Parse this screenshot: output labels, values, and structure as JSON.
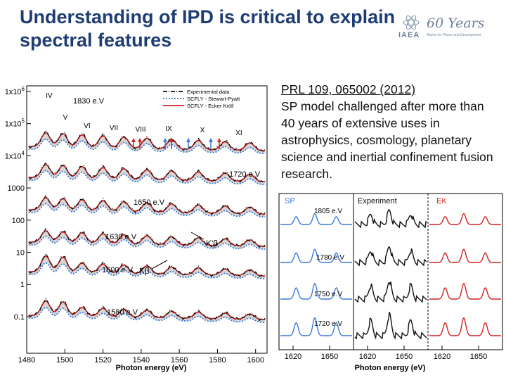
{
  "slide": {
    "title_line1": "Understanding of IPD is critical to explain",
    "title_line2": "spectral features",
    "logo": {
      "years_text": "60 Years",
      "org": "IAEA",
      "tagline": "Atoms for Peace and Development"
    },
    "reference": {
      "citation": "PRL 109, 065002 (2012)",
      "text": "SP model challenged after more than 40 years of extensive uses in astrophysics, cosmology, planetary science and inertial confinement fusion research."
    }
  },
  "chart_data": [
    {
      "type": "line",
      "xlabel": "Photon energy (eV)",
      "x_ticks": [
        "1480",
        "1500",
        "1520",
        "1540",
        "1560",
        "1580",
        "1600"
      ],
      "y_ticks": [
        "1x10^6",
        "1x10^5",
        "1x10^4",
        "1000",
        "100",
        "10",
        "1",
        "0.1"
      ],
      "yscale": "log",
      "legend": [
        "Experimental data",
        "SCFLY - Stewart-Pyatt",
        "SCFLY - Ecker Kröll"
      ],
      "legend_colors": [
        "#111111",
        "#3a78d8",
        "#d42020"
      ],
      "ion_stage_labels": [
        "IV",
        "V",
        "VI",
        "VII",
        "VIII",
        "IX",
        "X",
        "XI"
      ],
      "line_labels": [
        "Kβ",
        "K'β"
      ],
      "temperatures": [
        "1830 e.V",
        "1720 e.V",
        "1650 e.V",
        "1630 e.V",
        "1600 e.V",
        "1580 e.V"
      ]
    },
    {
      "type": "line",
      "xlabel": "Photon energy (eV)",
      "panel_titles": [
        "SP",
        "Experiment",
        "EK"
      ],
      "panel_title_colors": [
        "#3a78d8",
        "#111111",
        "#d42020"
      ],
      "x_ticks": [
        "1620",
        "1650",
        "1620",
        "1650",
        "1620",
        "1650"
      ],
      "temperatures": [
        "1805 e.V",
        "1780 e.V",
        "1750 e.V",
        "1720 e.V"
      ]
    }
  ]
}
